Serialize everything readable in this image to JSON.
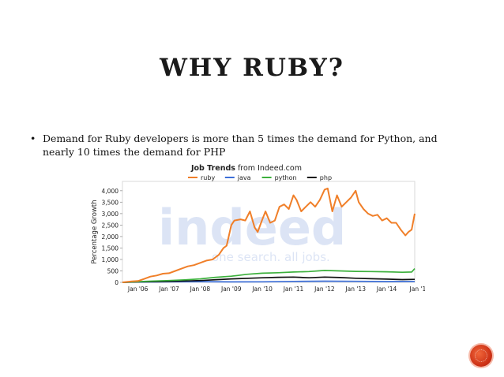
{
  "slide": {
    "title": "WHY RUBY?",
    "bullet_marker": "•",
    "bullet_text": "Demand for Ruby developers is more than 5 times the demand for Python, and nearly 10 times the demand for PHP"
  },
  "chart_data": {
    "type": "line",
    "title_bold": "Job Trends",
    "title_rest": "from Indeed.com",
    "ylabel": "Percentage Growth",
    "ylim": [
      0,
      4200
    ],
    "yticks": [
      0,
      500,
      1000,
      1500,
      2000,
      2500,
      3000,
      3500,
      4000
    ],
    "ytick_labels": [
      "0",
      "500",
      "1,000",
      "1,500",
      "2,000",
      "2,500",
      "3,000",
      "3,500",
      "4,000"
    ],
    "xlim": [
      2005.5,
      2014.9
    ],
    "xticks": [
      2006,
      2007,
      2008,
      2009,
      2010,
      2011,
      2012,
      2013,
      2014,
      2015
    ],
    "xtick_labels": [
      "Jan '06",
      "Jan '07",
      "Jan '08",
      "Jan '09",
      "Jan '10",
      "Jan '11",
      "Jan '12",
      "Jan '13",
      "Jan '14",
      "Jan '1"
    ],
    "watermark": {
      "brand": "indeed",
      "tagline": "one search. all jobs."
    },
    "grid": false,
    "legend": "top",
    "series": [
      {
        "name": "ruby",
        "color": "#f07f29",
        "x": [
          2005.5,
          2005.8,
          2006.0,
          2006.2,
          2006.4,
          2006.6,
          2006.8,
          2007.0,
          2007.2,
          2007.4,
          2007.6,
          2007.8,
          2008.0,
          2008.2,
          2008.4,
          2008.6,
          2008.75,
          2008.85,
          2009.0,
          2009.1,
          2009.3,
          2009.45,
          2009.6,
          2009.75,
          2009.85,
          2010.0,
          2010.1,
          2010.25,
          2010.4,
          2010.55,
          2010.7,
          2010.85,
          2011.0,
          2011.1,
          2011.25,
          2011.4,
          2011.55,
          2011.7,
          2011.85,
          2012.0,
          2012.1,
          2012.25,
          2012.4,
          2012.55,
          2012.7,
          2012.85,
          2013.0,
          2013.1,
          2013.25,
          2013.4,
          2013.55,
          2013.7,
          2013.85,
          2014.0,
          2014.15,
          2014.3,
          2014.45,
          2014.6,
          2014.7,
          2014.8,
          2014.9
        ],
        "y": [
          0,
          40,
          60,
          150,
          250,
          300,
          380,
          400,
          500,
          600,
          700,
          750,
          850,
          950,
          1000,
          1200,
          1500,
          1600,
          2500,
          2700,
          2750,
          2700,
          3100,
          2400,
          2200,
          2750,
          3100,
          2600,
          2700,
          3300,
          3400,
          3200,
          3800,
          3600,
          3100,
          3300,
          3500,
          3300,
          3600,
          4050,
          4100,
          3100,
          3800,
          3300,
          3500,
          3700,
          4000,
          3500,
          3200,
          3000,
          2900,
          2950,
          2700,
          2800,
          2600,
          2600,
          2300,
          2050,
          2200,
          2300,
          3000
        ]
      },
      {
        "name": "java",
        "color": "#3d6fd8",
        "x": [
          2005.5,
          2006.0,
          2007.0,
          2008.0,
          2009.0,
          2010.0,
          2011.0,
          2012.0,
          2013.0,
          2014.0,
          2014.9
        ],
        "y": [
          0,
          15,
          25,
          30,
          20,
          25,
          40,
          50,
          45,
          35,
          40
        ]
      },
      {
        "name": "python",
        "color": "#3cb03c",
        "x": [
          2005.5,
          2006.0,
          2006.5,
          2007.0,
          2007.5,
          2008.0,
          2008.5,
          2009.0,
          2009.2,
          2009.5,
          2010.0,
          2010.5,
          2011.0,
          2011.5,
          2012.0,
          2012.5,
          2013.0,
          2013.5,
          2014.0,
          2014.5,
          2014.8,
          2014.9
        ],
        "y": [
          0,
          30,
          60,
          80,
          110,
          150,
          220,
          270,
          300,
          350,
          400,
          420,
          450,
          470,
          520,
          500,
          480,
          470,
          460,
          440,
          450,
          600
        ]
      },
      {
        "name": "php",
        "color": "#111111",
        "x": [
          2005.5,
          2006.0,
          2007.0,
          2008.0,
          2009.0,
          2010.0,
          2010.5,
          2011.0,
          2011.5,
          2012.0,
          2012.5,
          2013.0,
          2013.5,
          2014.0,
          2014.5,
          2014.9
        ],
        "y": [
          0,
          20,
          40,
          80,
          150,
          200,
          220,
          230,
          200,
          230,
          210,
          180,
          160,
          140,
          120,
          130
        ]
      }
    ]
  },
  "colors": {
    "title": "#1a1a1a",
    "badge": "#d9411e"
  }
}
